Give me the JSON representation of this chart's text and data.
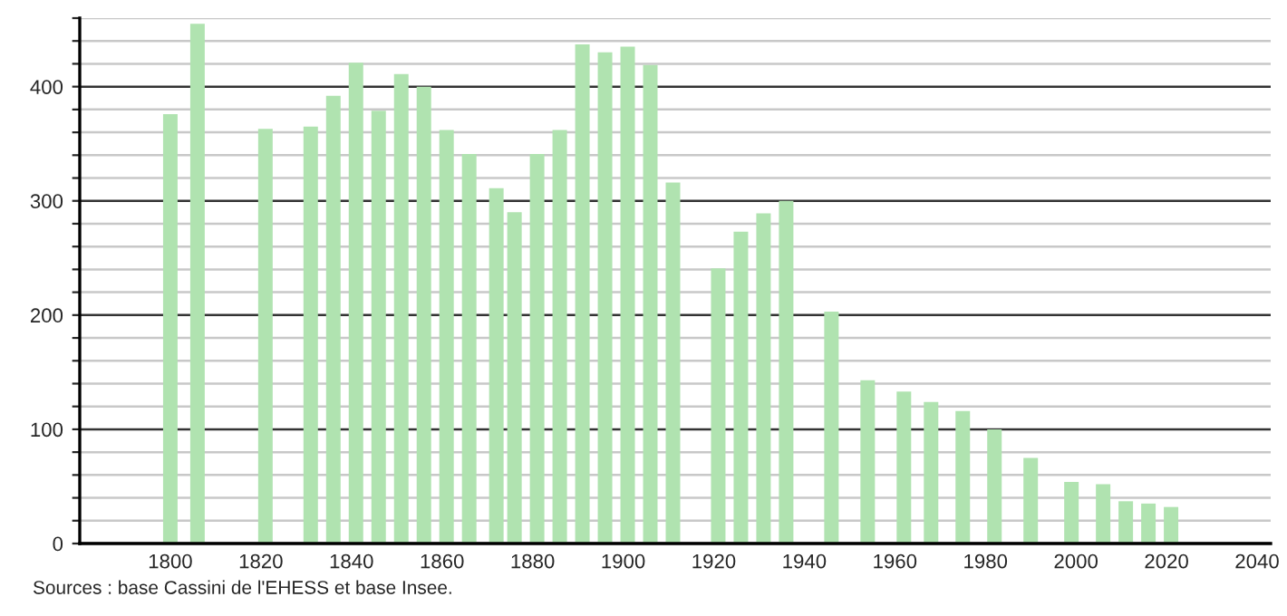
{
  "chart_data": {
    "type": "bar",
    "x": [
      1800,
      1806,
      1821,
      1831,
      1836,
      1841,
      1846,
      1851,
      1856,
      1861,
      1866,
      1872,
      1876,
      1881,
      1886,
      1891,
      1896,
      1901,
      1906,
      1911,
      1921,
      1926,
      1931,
      1936,
      1946,
      1954,
      1962,
      1968,
      1975,
      1982,
      1990,
      1999,
      2006,
      2011,
      2016,
      2021
    ],
    "values": [
      376,
      455,
      363,
      365,
      392,
      421,
      379,
      411,
      400,
      362,
      341,
      311,
      290,
      341,
      362,
      437,
      430,
      435,
      419,
      316,
      241,
      273,
      289,
      300,
      203,
      143,
      133,
      124,
      116,
      100,
      75,
      54,
      52,
      37,
      35,
      32
    ],
    "color": "#b0e3b0",
    "xlim": [
      1780,
      2043
    ],
    "xticks": [
      1800,
      1820,
      1840,
      1860,
      1880,
      1900,
      1920,
      1940,
      1960,
      1980,
      2000,
      2020,
      2040
    ],
    "ylim": [
      0,
      460
    ],
    "yticks": [
      0,
      {
        "value": 20,
        "label": null
      },
      {
        "value": 40,
        "label": null
      },
      {
        "value": 60,
        "label": null
      },
      {
        "value": 80,
        "label": null
      },
      100,
      {
        "value": 120,
        "label": null
      },
      {
        "value": 140,
        "label": null
      },
      {
        "value": 160,
        "label": null
      },
      {
        "value": 180,
        "label": null
      },
      200,
      {
        "value": 220,
        "label": null
      },
      {
        "value": 240,
        "label": null
      },
      {
        "value": 260,
        "label": null
      },
      {
        "value": 280,
        "label": null
      },
      300,
      {
        "value": 320,
        "label": null
      },
      {
        "value": 340,
        "label": null
      },
      {
        "value": 360,
        "label": null
      },
      {
        "value": 380,
        "label": null
      },
      400,
      {
        "value": 420,
        "label": null
      },
      {
        "value": 440,
        "label": null
      },
      {
        "value": 460,
        "label": null
      }
    ],
    "grid": "y",
    "annotations": [
      "Sources : base Cassini de l'EHESS et base Insee."
    ]
  }
}
